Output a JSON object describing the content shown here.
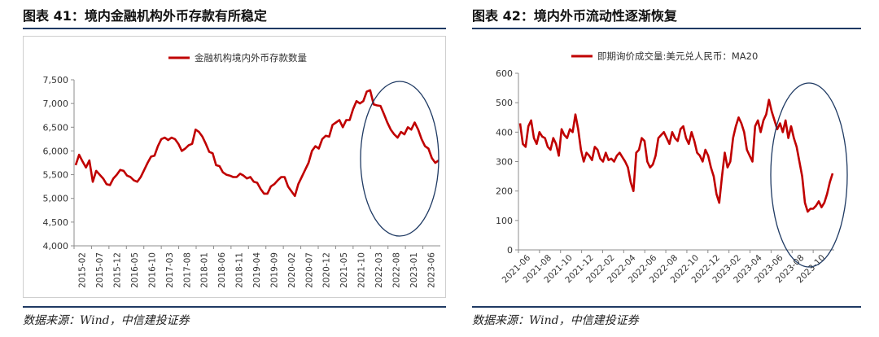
{
  "left": {
    "figure_title": "图表 41：境内金融机构外币存款有所稳定",
    "source": "数据来源：Wind，中信建投证券",
    "ellipse_color": "#1f3a63"
  },
  "right": {
    "figure_title": "图表 42：境内外币流动性逐渐恢复",
    "source": "数据来源：Wind，中信建投证券",
    "ellipse_color": "#1f3a63"
  },
  "chart_data": [
    {
      "type": "line",
      "legend_position": "top",
      "grid": false,
      "ylim": [
        4000,
        7500
      ],
      "yticks": [
        "4,000",
        "4,500",
        "5,000",
        "5,500",
        "6,000",
        "6,500",
        "7,000",
        "7,500"
      ],
      "ytick_values": [
        4000,
        4500,
        5000,
        5500,
        6000,
        6500,
        7000,
        7500
      ],
      "xticks": [
        "2015-02",
        "2015-07",
        "2015-12",
        "2016-05",
        "2016-10",
        "2017-03",
        "2017-08",
        "2018-01",
        "2018-06",
        "2018-11",
        "2019-04",
        "2019-09",
        "2020-02",
        "2020-07",
        "2020-12",
        "2021-05",
        "2021-10",
        "2022-03",
        "2022-08",
        "2023-01",
        "2023-06"
      ],
      "series": [
        {
          "name": "金融机构境内外币存款数量",
          "color": "#c00000",
          "values": [
            5700,
            5920,
            5780,
            5650,
            5800,
            5350,
            5580,
            5500,
            5420,
            5300,
            5280,
            5420,
            5500,
            5600,
            5580,
            5480,
            5450,
            5380,
            5350,
            5450,
            5600,
            5750,
            5880,
            5900,
            6100,
            6250,
            6280,
            6230,
            6280,
            6250,
            6150,
            6000,
            6050,
            6120,
            6150,
            6450,
            6400,
            6300,
            6150,
            5980,
            5950,
            5700,
            5680,
            5550,
            5500,
            5480,
            5450,
            5450,
            5520,
            5480,
            5420,
            5450,
            5350,
            5330,
            5200,
            5100,
            5100,
            5250,
            5300,
            5380,
            5450,
            5450,
            5250,
            5150,
            5050,
            5300,
            5450,
            5600,
            5750,
            6000,
            6100,
            6050,
            6250,
            6320,
            6300,
            6550,
            6600,
            6650,
            6500,
            6650,
            6650,
            6880,
            7050,
            7000,
            7050,
            7250,
            7280,
            6980,
            6960,
            6950,
            6780,
            6600,
            6450,
            6350,
            6280,
            6400,
            6350,
            6500,
            6450,
            6600,
            6450,
            6250,
            6100,
            6050,
            5850,
            5750,
            5800
          ]
        }
      ]
    },
    {
      "type": "line",
      "legend_position": "top",
      "grid": false,
      "ylim": [
        0,
        600
      ],
      "yticks": [
        "0",
        "100",
        "200",
        "300",
        "400",
        "500",
        "600"
      ],
      "ytick_values": [
        0,
        100,
        200,
        300,
        400,
        500,
        600
      ],
      "xticks": [
        "2021-06",
        "2021-08",
        "2021-10",
        "2021-12",
        "2022-02",
        "2022-04",
        "2022-06",
        "2022-08",
        "2022-10",
        "2022-12",
        "2023-02",
        "2023-04",
        "2023-06",
        "2023-08",
        "2023-10"
      ],
      "series": [
        {
          "name": "即期询价成交量:美元兑人民币：MA20",
          "color": "#c00000",
          "values": [
            430,
            360,
            350,
            420,
            440,
            380,
            360,
            400,
            385,
            380,
            350,
            340,
            380,
            360,
            320,
            410,
            390,
            380,
            410,
            400,
            460,
            410,
            340,
            300,
            330,
            320,
            305,
            350,
            340,
            310,
            300,
            330,
            305,
            310,
            300,
            320,
            330,
            315,
            300,
            280,
            230,
            200,
            330,
            340,
            380,
            370,
            300,
            280,
            290,
            320,
            380,
            390,
            400,
            380,
            360,
            400,
            380,
            370,
            410,
            420,
            380,
            360,
            400,
            370,
            330,
            320,
            300,
            340,
            320,
            280,
            250,
            190,
            160,
            250,
            330,
            280,
            300,
            380,
            420,
            450,
            430,
            400,
            340,
            320,
            300,
            420,
            440,
            400,
            440,
            460,
            510,
            470,
            440,
            410,
            430,
            400,
            440,
            380,
            420,
            380,
            350,
            300,
            250,
            160,
            130,
            140,
            140,
            150,
            165,
            145,
            160,
            190,
            230,
            260
          ]
        }
      ]
    }
  ]
}
